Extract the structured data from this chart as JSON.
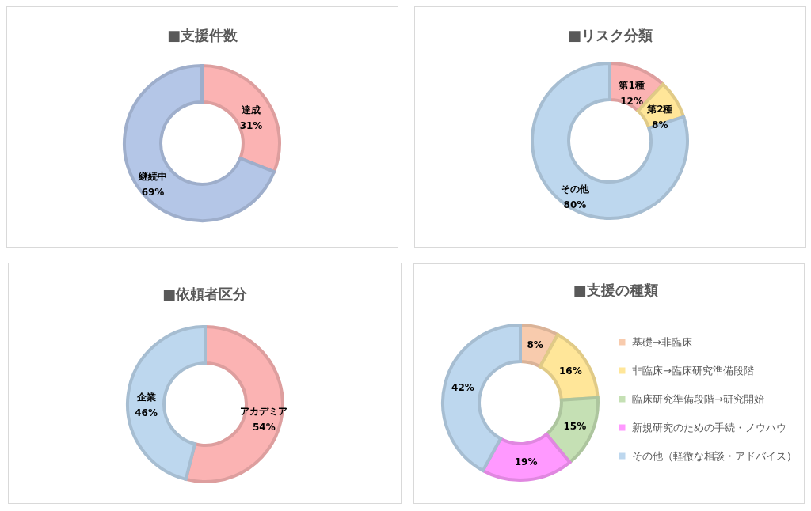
{
  "chart_data": [
    {
      "type": "donut",
      "title": "■支援件数",
      "categories": [
        "達成",
        "継続中"
      ],
      "values": [
        31,
        69
      ],
      "colors": [
        "#fbb3b3",
        "#b4c6e7"
      ],
      "value_labels": [
        "31%",
        "69%"
      ],
      "legend": false
    },
    {
      "type": "donut",
      "title": "■リスク分類",
      "categories": [
        "第1種",
        "第2種",
        "その他"
      ],
      "values": [
        12,
        8,
        80
      ],
      "colors": [
        "#fbb3b3",
        "#ffe699",
        "#bdd7ee"
      ],
      "value_labels": [
        "12%",
        "8%",
        "80%"
      ],
      "legend": false
    },
    {
      "type": "donut",
      "title": "■依頼者区分",
      "categories": [
        "アカデミア",
        "企業"
      ],
      "values": [
        54,
        46
      ],
      "colors": [
        "#fbb3b3",
        "#bdd7ee"
      ],
      "value_labels": [
        "54%",
        "46%"
      ],
      "legend": false
    },
    {
      "type": "donut",
      "title": "■支援の種類",
      "categories": [
        "基礎→非臨床",
        "非臨床→臨床研究準備段階",
        "臨床研究準備段階→研究開始",
        "新規研究のための手続・ノウハウ",
        "その他（軽微な相談・アドバイス）"
      ],
      "values": [
        8,
        16,
        15,
        19,
        42
      ],
      "colors": [
        "#f8cbad",
        "#ffe699",
        "#c5e0b4",
        "#ff99ff",
        "#bdd7ee"
      ],
      "value_labels": [
        "8%",
        "16%",
        "15%",
        "19%",
        "42%"
      ],
      "legend": "right"
    }
  ]
}
